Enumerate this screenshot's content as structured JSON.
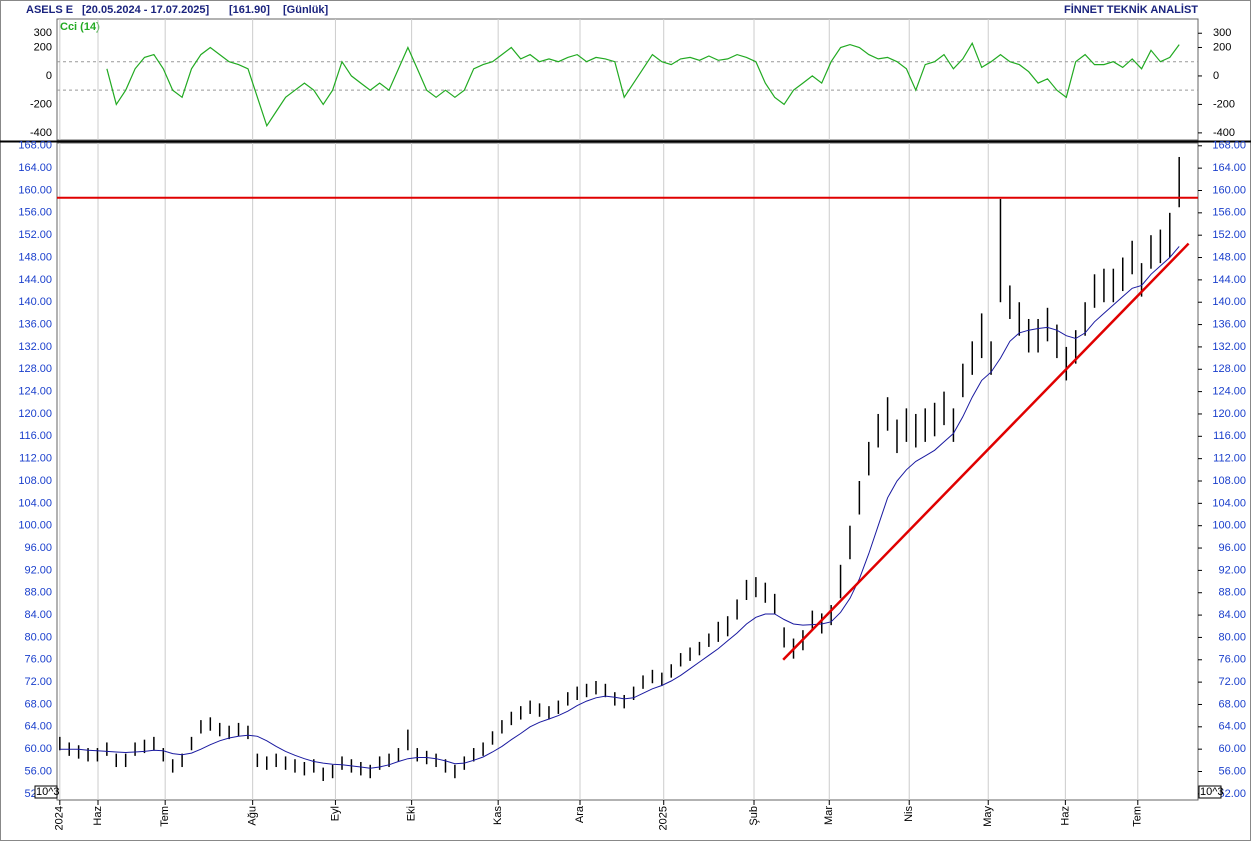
{
  "header": {
    "symbol": "ASELS E",
    "range": "[20.05.2024 - 17.07.2025]",
    "last": "[161.90]",
    "period": "[Günlük]",
    "brand": "FİNNET TEKNİK ANALİST"
  },
  "chart_data": [
    {
      "type": "line",
      "title": "Cci (14)",
      "ylim": [
        -450,
        400
      ],
      "yticks": [
        300,
        200,
        0,
        -200,
        -400
      ],
      "reference_lines": [
        100,
        -100
      ],
      "series": [
        {
          "color": "#22aa22",
          "values": [
            null,
            null,
            null,
            null,
            null,
            50,
            -200,
            -100,
            50,
            130,
            150,
            50,
            -100,
            -150,
            50,
            150,
            200,
            150,
            100,
            80,
            50,
            -150,
            -350,
            -250,
            -150,
            -100,
            -50,
            -100,
            -200,
            -100,
            100,
            0,
            -50,
            -100,
            -50,
            -100,
            50,
            200,
            50,
            -100,
            -150,
            -100,
            -150,
            -100,
            50,
            80,
            100,
            150,
            200,
            120,
            150,
            100,
            120,
            100,
            130,
            150,
            100,
            130,
            120,
            100,
            -150,
            -50,
            50,
            150,
            100,
            80,
            120,
            130,
            110,
            140,
            110,
            120,
            150,
            130,
            100,
            -50,
            -150,
            -200,
            -100,
            -50,
            0,
            -50,
            100,
            200,
            220,
            200,
            150,
            120,
            130,
            100,
            50,
            -100,
            80,
            100,
            150,
            50,
            120,
            230,
            60,
            100,
            150,
            100,
            80,
            30,
            -50,
            -20,
            -100,
            -150,
            100,
            150,
            80,
            80,
            100,
            60,
            120,
            50,
            180,
            100,
            130,
            220
          ]
        }
      ]
    },
    {
      "type": "ohlc",
      "color": "#000000",
      "unit_label": "10^3",
      "xlim": [
        -0.3,
        121
      ],
      "xticks": [
        {
          "value": 0,
          "label": "2024"
        },
        {
          "value": 4.06,
          "label": "Haz"
        },
        {
          "value": 11.2,
          "label": "Tem"
        },
        {
          "value": 20.5,
          "label": "Ağu"
        },
        {
          "value": 29.3,
          "label": "Eyl"
        },
        {
          "value": 37.4,
          "label": "Eki"
        },
        {
          "value": 46.6,
          "label": "Kas"
        },
        {
          "value": 55.3,
          "label": "Ara"
        },
        {
          "value": 64.2,
          "label": "2025"
        },
        {
          "value": 73.8,
          "label": "Şub"
        },
        {
          "value": 81.8,
          "label": "Mar"
        },
        {
          "value": 90.3,
          "label": "Nis"
        },
        {
          "value": 98.7,
          "label": "May"
        },
        {
          "value": 106.9,
          "label": "Haz"
        },
        {
          "value": 114.6,
          "label": "Tem"
        }
      ],
      "ylim": [
        50.9,
        168.5
      ],
      "yticks": [
        {
          "value": 168,
          "label": "168.00"
        },
        {
          "value": 164,
          "label": "164.00"
        },
        {
          "value": 160,
          "label": "160.00"
        },
        {
          "value": 156,
          "label": "156.00"
        },
        {
          "value": 152,
          "label": "152.00"
        },
        {
          "value": 148,
          "label": "148.00"
        },
        {
          "value": 144,
          "label": "144.00"
        },
        {
          "value": 140,
          "label": "140.00"
        },
        {
          "value": 136,
          "label": "136.00"
        },
        {
          "value": 132,
          "label": "132.00"
        },
        {
          "value": 128,
          "label": "128.00"
        },
        {
          "value": 124,
          "label": "124.00"
        },
        {
          "value": 120,
          "label": "120.00"
        },
        {
          "value": 116,
          "label": "116.00"
        },
        {
          "value": 112,
          "label": "112.00"
        },
        {
          "value": 108,
          "label": "108.00"
        },
        {
          "value": 104,
          "label": "104.00"
        },
        {
          "value": 100,
          "label": "100.00"
        },
        {
          "value": 96,
          "label": "96.00"
        },
        {
          "value": 92,
          "label": "92.00"
        },
        {
          "value": 88,
          "label": "88.00"
        },
        {
          "value": 84,
          "label": "84.00"
        },
        {
          "value": 80,
          "label": "80.00"
        },
        {
          "value": 76,
          "label": "76.00"
        },
        {
          "value": 72,
          "label": "72.00"
        },
        {
          "value": 68,
          "label": "68.00"
        },
        {
          "value": 64,
          "label": "64.00"
        },
        {
          "value": 60,
          "label": "60.00"
        },
        {
          "value": 56,
          "label": "56.00"
        },
        {
          "value": 52,
          "label": "52.00"
        }
      ],
      "high": [
        62.2,
        61.2,
        60.7,
        60.2,
        60.2,
        61.2,
        59.2,
        59.2,
        61.2,
        61.7,
        62.2,
        60.2,
        58.2,
        59.2,
        62.2,
        65.2,
        65.7,
        64.7,
        64.2,
        64.7,
        64.2,
        59.2,
        58.7,
        59.2,
        58.7,
        58.2,
        57.7,
        58.2,
        56.7,
        57.2,
        58.7,
        58.2,
        57.7,
        57.2,
        58.7,
        59.2,
        60.2,
        63.5,
        60.2,
        59.7,
        59.2,
        58.2,
        57.2,
        58.7,
        60.2,
        61.2,
        63.2,
        65.2,
        66.7,
        67.7,
        68.7,
        68.2,
        67.7,
        68.7,
        70.2,
        71.2,
        71.7,
        72.2,
        71.7,
        70.2,
        69.7,
        71.2,
        73.2,
        74.2,
        73.7,
        75.2,
        77.2,
        78.2,
        79.2,
        80.7,
        82.8,
        83.8,
        86.8,
        90.3,
        90.8,
        89.8,
        87.8,
        81.8,
        79.8,
        81.3,
        84.8,
        84.3,
        85.8,
        93,
        100,
        108,
        115,
        120,
        123,
        119,
        121,
        120,
        121,
        122,
        124,
        121,
        129,
        133,
        138,
        133,
        158.5,
        143,
        140,
        137,
        137,
        139,
        136,
        132,
        135,
        140,
        145,
        146,
        146,
        148,
        151,
        147,
        152,
        153,
        156,
        166
      ],
      "low": [
        59.8,
        58.8,
        58.3,
        57.8,
        57.8,
        58.8,
        56.8,
        56.8,
        58.8,
        59.3,
        59.8,
        57.8,
        55.8,
        56.8,
        59.8,
        62.8,
        63.3,
        62.3,
        61.8,
        62.3,
        61.8,
        56.8,
        56.3,
        56.8,
        56.3,
        55.8,
        55.3,
        55.8,
        54.3,
        54.8,
        56.3,
        55.8,
        55.3,
        54.8,
        56.3,
        56.8,
        57.8,
        59.8,
        57.8,
        57.3,
        56.8,
        55.8,
        54.8,
        56.3,
        57.8,
        58.8,
        60.8,
        62.8,
        64.3,
        65.3,
        66.3,
        65.8,
        65.3,
        66.3,
        67.8,
        68.8,
        69.3,
        69.8,
        69.3,
        67.8,
        67.3,
        68.8,
        70.8,
        71.8,
        71.3,
        72.8,
        74.8,
        75.8,
        76.8,
        78.3,
        79.2,
        80.2,
        83.2,
        86.7,
        87.2,
        86.2,
        84.2,
        78.2,
        76.2,
        77.7,
        81.2,
        80.7,
        82.2,
        87,
        94,
        102,
        109,
        114,
        117,
        113,
        115,
        114,
        115,
        116,
        118,
        115,
        123,
        127,
        130,
        127,
        140,
        137,
        134,
        131,
        131,
        133,
        130,
        126,
        129,
        134,
        139,
        140,
        140,
        142,
        145,
        141,
        146,
        147,
        148,
        157
      ],
      "series": [
        {
          "color": "#1a1aa0",
          "values": [
            60,
            60,
            60,
            59.8,
            59.7,
            59.6,
            59.5,
            59.4,
            59.5,
            59.6,
            59.8,
            59.7,
            59.2,
            59,
            59.3,
            60,
            60.8,
            61.5,
            62,
            62.3,
            62.5,
            62.3,
            61.5,
            60.5,
            59.6,
            58.9,
            58.3,
            57.8,
            57.5,
            57.3,
            57.2,
            57,
            56.8,
            56.6,
            56.8,
            57.2,
            57.8,
            58.3,
            58.5,
            58.5,
            58.3,
            57.9,
            57.4,
            57.5,
            58,
            58.6,
            59.5,
            60.5,
            61.7,
            62.8,
            64,
            64.8,
            65.4,
            66,
            66.8,
            67.8,
            68.6,
            69.2,
            69.5,
            69.3,
            69,
            69.2,
            70,
            70.8,
            71.4,
            72.2,
            73.2,
            74.4,
            75.6,
            76.8,
            78,
            79.4,
            80.8,
            82.4,
            83.6,
            84.2,
            84.2,
            83.2,
            82.4,
            82.2,
            82.3,
            82.4,
            82.8,
            84.5,
            87,
            90.5,
            95,
            100,
            105,
            108,
            110,
            111.5,
            112.5,
            113.5,
            115,
            116.5,
            119.5,
            123,
            126,
            127.5,
            130,
            133,
            134.5,
            135,
            135.3,
            135.5,
            135,
            134,
            133.5,
            134.5,
            136.5,
            138,
            139.5,
            141,
            142.5,
            143,
            145,
            146.5,
            148,
            150
          ]
        }
      ],
      "hlines": [
        {
          "y": 158.7,
          "color": "#e00000"
        }
      ],
      "trend": {
        "x": [
          76.9,
          120
        ],
        "y": [
          76,
          150.5
        ],
        "color": "#e00000"
      }
    }
  ]
}
